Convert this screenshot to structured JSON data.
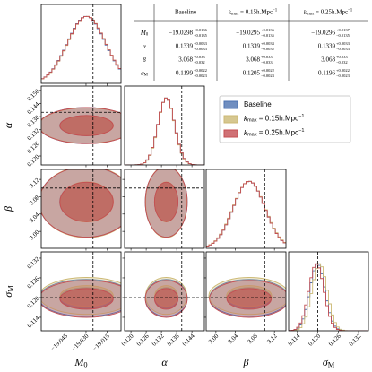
{
  "chart_data": {
    "type": "corner",
    "series": [
      {
        "name": "Baseline",
        "color": "#4c72b0"
      },
      {
        "name": {
          "base": "k",
          "sub": "max",
          "main": " = 0.15h.Mpc",
          "sup": "−1"
        },
        "color": "#ccb974"
      },
      {
        "name": {
          "base": "k",
          "sub": "max",
          "main": " = 0.25h.Mpc",
          "sup": "−1"
        },
        "color": "#c44e52"
      }
    ],
    "parameters": [
      {
        "label": {
          "base": "M",
          "sub": "0"
        },
        "lim": [
          -19.062,
          -19.005
        ],
        "truth": -19.025,
        "ticks": [
          {
            "value": -19.045,
            "label": "−19.045"
          },
          {
            "value": -19.03,
            "label": "−19.030"
          },
          {
            "value": -19.015,
            "label": "−19.015"
          }
        ],
        "estimates": [
          {
            "value": -19.0298,
            "label": "−19.0298",
            "upper": {
              "value": 0.0136,
              "label": "+0.0136"
            },
            "lower": {
              "value": 0.0135,
              "label": "−0.0135"
            }
          },
          {
            "value": -19.0295,
            "label": "−19.0295",
            "upper": {
              "value": 0.0136,
              "label": "+0.0136"
            },
            "lower": {
              "value": 0.0135,
              "label": "−0.0135"
            }
          },
          {
            "value": -19.0296,
            "label": "−19.0296",
            "upper": {
              "value": 0.0137,
              "label": "+0.0137"
            },
            "lower": {
              "value": 0.0135,
              "label": "−0.0135"
            }
          }
        ]
      },
      {
        "label": {
          "base": "α"
        },
        "lim": [
          0.1175,
          0.1489
        ],
        "ylim": [
          0.1159,
          0.152
        ],
        "truth": 0.14,
        "ticks": [
          {
            "value": 0.12,
            "label": "0.120"
          },
          0.126,
          0.132,
          0.138,
          0.144,
          {
            "value": 0.15,
            "label": "0.150"
          }
        ],
        "estimates": [
          {
            "value": 0.1339,
            "upper": {
              "value": 0.0033,
              "label": "+0.0033"
            },
            "lower": {
              "value": 0.0033,
              "label": "−0.0033"
            }
          },
          {
            "value": 0.1339,
            "upper": {
              "value": 0.0033,
              "label": "+0.0033"
            },
            "lower": {
              "value": 0.0032,
              "label": "−0.0032"
            }
          },
          {
            "value": 0.1339,
            "upper": {
              "value": 0.0033,
              "label": "+0.0033"
            },
            "lower": {
              "value": 0.0033,
              "label": "−0.0033"
            }
          }
        ]
      },
      {
        "label": {
          "base": "β"
        },
        "lim": [
          2.98,
          3.1436
        ],
        "ylim": [
          2.961,
          3.143
        ],
        "truth": 3.1,
        "ticks": [
          {
            "value": 3,
            "label": "3.00"
          },
          3.04,
          3.08,
          3.12
        ],
        "estimates": [
          {
            "value": 3.068,
            "upper": {
              "value": 0.033,
              "label": "+0.033"
            },
            "lower": {
              "value": 0.032,
              "label": "−0.032"
            }
          },
          {
            "value": 3.068,
            "upper": {
              "value": 0.033,
              "label": "+0.033"
            },
            "lower": {
              "value": 0.033,
              "label": "−0.033"
            }
          },
          {
            "value": 3.068,
            "upper": {
              "value": 0.033,
              "label": "+0.033"
            },
            "lower": {
              "value": 0.032,
              "label": "−0.032"
            }
          }
        ]
      },
      {
        "label": {
          "base": "σ",
          "sub": "M"
        },
        "lim": [
          0.1114,
          0.1349
        ],
        "ylim": [
          0.1099,
          0.1339
        ],
        "truth": 0.12,
        "ticks": [
          0.114,
          {
            "value": 0.12,
            "label": "0.120"
          },
          0.126,
          0.132
        ],
        "estimates": [
          {
            "value": 0.1199,
            "upper": {
              "value": 0.0022,
              "label": "+0.0022"
            },
            "lower": {
              "value": 0.0023,
              "label": "−0.0023"
            }
          },
          {
            "value": 0.1205,
            "upper": {
              "value": 0.0022,
              "label": "+0.0022"
            },
            "lower": {
              "value": 0.0023,
              "label": "−0.0023"
            }
          },
          {
            "value": 0.1196,
            "upper": {
              "value": 0.0022,
              "label": "+0.0022"
            },
            "lower": {
              "value": 0.0023,
              "label": "−0.0023"
            }
          }
        ]
      }
    ],
    "table": {
      "header": [
        "Baseline",
        {
          "base": "k",
          "sub": "max",
          "main": " = 0.15h.Mpc",
          "sup": "−1"
        },
        {
          "base": "k",
          "sub": "max",
          "main": " = 0.25h.Mpc",
          "sup": "−1"
        }
      ],
      "row_labels": [
        {
          "base": "M",
          "sub": "0"
        },
        {
          "base": "α"
        },
        {
          "base": "β"
        },
        {
          "base": "σ",
          "sub": "M"
        }
      ]
    }
  }
}
